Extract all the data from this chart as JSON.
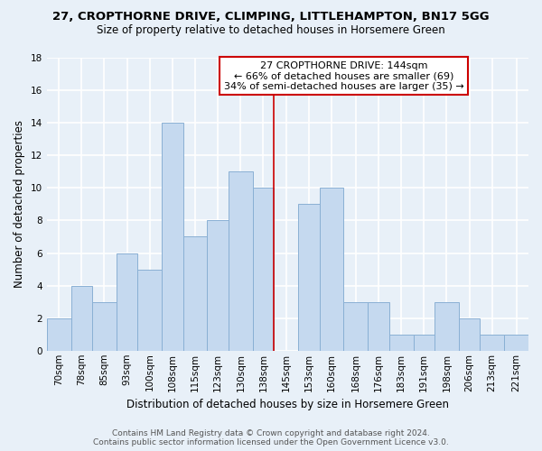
{
  "title": "27, CROPTHORNE DRIVE, CLIMPING, LITTLEHAMPTON, BN17 5GG",
  "subtitle": "Size of property relative to detached houses in Horsemere Green",
  "xlabel": "Distribution of detached houses by size in Horsemere Green",
  "ylabel": "Number of detached properties",
  "bar_labels": [
    "70sqm",
    "78sqm",
    "85sqm",
    "93sqm",
    "100sqm",
    "108sqm",
    "115sqm",
    "123sqm",
    "130sqm",
    "138sqm",
    "145sqm",
    "153sqm",
    "160sqm",
    "168sqm",
    "176sqm",
    "183sqm",
    "191sqm",
    "198sqm",
    "206sqm",
    "213sqm",
    "221sqm"
  ],
  "bar_values": [
    2,
    4,
    3,
    6,
    5,
    14,
    7,
    8,
    11,
    10,
    0,
    9,
    10,
    3,
    3,
    1,
    1,
    3,
    2,
    1,
    1
  ],
  "bar_face_color": "#c5d9ef",
  "bar_edge_color": "#8ab0d4",
  "ylim": [
    0,
    18
  ],
  "yticks": [
    0,
    2,
    4,
    6,
    8,
    10,
    12,
    14,
    16,
    18
  ],
  "annotation_text_line1": "27 CROPTHORNE DRIVE: 144sqm",
  "annotation_text_line2": "← 66% of detached houses are smaller (69)",
  "annotation_text_line3": "34% of semi-detached houses are larger (35) →",
  "annotation_box_color": "#ffffff",
  "annotation_border_color": "#cc0000",
  "red_line_x": 145,
  "footer_line1": "Contains HM Land Registry data © Crown copyright and database right 2024.",
  "footer_line2": "Contains public sector information licensed under the Open Government Licence v3.0.",
  "background_color": "#e8f0f8",
  "grid_color": "#d0dce8",
  "bin_edges": [
    70,
    78,
    85,
    93,
    100,
    108,
    115,
    123,
    130,
    138,
    145,
    153,
    160,
    168,
    176,
    183,
    191,
    198,
    206,
    213,
    221,
    229
  ],
  "title_fontsize": 9.5,
  "subtitle_fontsize": 8.5,
  "ylabel_fontsize": 8.5,
  "xlabel_fontsize": 8.5,
  "tick_fontsize": 7.5,
  "footer_fontsize": 6.5,
  "annot_fontsize": 8.0
}
